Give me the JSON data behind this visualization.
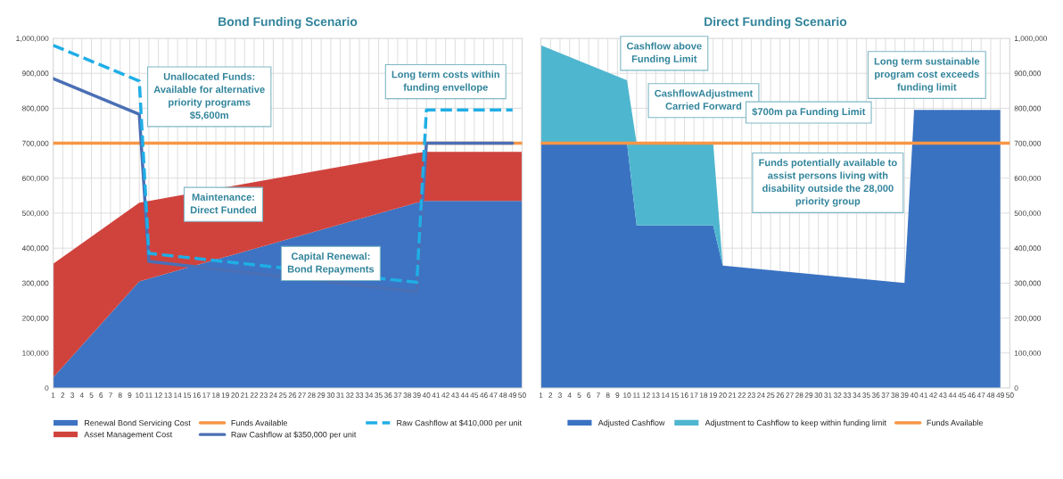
{
  "chart_data": [
    {
      "type": "area",
      "title": "Bond Funding Scenario",
      "stacked": true,
      "grid": true,
      "legend": "bottom",
      "xlim": [
        1,
        50
      ],
      "xticks": [
        1,
        2,
        3,
        4,
        5,
        6,
        7,
        8,
        9,
        10,
        11,
        12,
        13,
        14,
        15,
        16,
        17,
        18,
        19,
        20,
        21,
        22,
        23,
        24,
        25,
        26,
        27,
        28,
        29,
        30,
        31,
        32,
        33,
        34,
        35,
        36,
        37,
        38,
        39,
        40,
        41,
        42,
        43,
        44,
        45,
        46,
        47,
        48,
        49,
        50
      ],
      "ylim": [
        0,
        1000000
      ],
      "yticks": [
        0,
        {
          "value": 100000,
          "label": "100,000"
        },
        {
          "value": 200000,
          "label": "200,000"
        },
        {
          "value": 300000,
          "label": "300,000"
        },
        {
          "value": 400000,
          "label": "400,000"
        },
        {
          "value": 500000,
          "label": "500,000"
        },
        {
          "value": 600000,
          "label": "600,000"
        },
        {
          "value": 700000,
          "label": "700,000"
        },
        {
          "value": 800000,
          "label": "800,000"
        },
        {
          "value": 900000,
          "label": "900,000"
        },
        {
          "value": 1000000,
          "label": "1,000,000"
        }
      ],
      "series": [
        {
          "name": "Renewal Bond Servicing Cost",
          "color": "#3d73c2",
          "x": [
            1,
            10,
            39,
            40,
            50
          ],
          "values": [
            30000,
            305000,
            530000,
            535000,
            535000
          ]
        },
        {
          "name": "Asset Management Cost",
          "color": "#d0433d",
          "x": [
            1,
            10,
            39,
            40,
            50
          ],
          "values": [
            325000,
            225000,
            142000,
            140000,
            140000
          ]
        },
        {
          "name": "Funds Available",
          "type": "line",
          "color": "#f79646",
          "line_style": "solid",
          "x": [
            1,
            50
          ],
          "values": [
            700000,
            700000
          ]
        },
        {
          "name": "Raw Cashflow at $350,000 per unit",
          "type": "line",
          "color": "#4a6fb5",
          "line_style": "solid",
          "x": [
            1,
            10,
            11,
            39,
            40,
            49
          ],
          "values": [
            885000,
            783000,
            362000,
            275000,
            700000,
            700000
          ]
        },
        {
          "name": "Raw Cashflow at $410,000 per unit",
          "type": "line",
          "color": "#1faee6",
          "line_style": "dashed",
          "x": [
            1,
            10,
            11,
            39,
            40,
            49
          ],
          "values": [
            980000,
            878000,
            385000,
            302000,
            795000,
            795000
          ]
        }
      ],
      "annotations": [
        "Unallocated Funds:\nAvailable for alternative\npriority programs\n$5,600m",
        "Long term costs within\nfunding envellope",
        "Maintenance:\nDirect Funded",
        "Capital Renewal:\nBond Repayments"
      ]
    },
    {
      "type": "area",
      "title": "Direct Funding Scenario",
      "stacked": true,
      "grid": true,
      "legend": "bottom",
      "xlim": [
        1,
        50
      ],
      "xticks": [
        1,
        2,
        3,
        4,
        5,
        6,
        7,
        8,
        9,
        10,
        11,
        12,
        13,
        14,
        15,
        16,
        17,
        18,
        19,
        20,
        21,
        22,
        23,
        24,
        25,
        26,
        27,
        28,
        29,
        30,
        31,
        32,
        33,
        34,
        35,
        36,
        37,
        38,
        39,
        40,
        41,
        42,
        43,
        44,
        45,
        46,
        47,
        48,
        49,
        50
      ],
      "y2lim": [
        0,
        1000000
      ],
      "y2ticks": [
        0,
        {
          "value": 100000,
          "label": "100,000"
        },
        {
          "value": 200000,
          "label": "200,000"
        },
        {
          "value": 300000,
          "label": "300,000"
        },
        {
          "value": 400000,
          "label": "400,000"
        },
        {
          "value": 500000,
          "label": "500,000"
        },
        {
          "value": 600000,
          "label": "600,000"
        },
        {
          "value": 700000,
          "label": "700,000"
        },
        {
          "value": 800000,
          "label": "800,000"
        },
        {
          "value": 900000,
          "label": "900,000"
        },
        {
          "value": 1000000,
          "label": "1,000,000"
        }
      ],
      "series": [
        {
          "name": "Adjusted Cashflow",
          "axis": "y2",
          "color": "#3a72c2",
          "x": [
            1,
            10,
            11,
            19,
            20,
            39,
            40,
            49
          ],
          "values": [
            700000,
            700000,
            465000,
            465000,
            350000,
            300000,
            795000,
            795000
          ]
        },
        {
          "name": "Adjustment to Cashflow to keep within funding limit",
          "axis": "y2",
          "color": "#4fb6cf",
          "x": [
            1,
            10,
            11,
            19,
            20,
            39,
            40,
            49
          ],
          "values": [
            280000,
            180000,
            235000,
            235000,
            0,
            0,
            0,
            0
          ]
        },
        {
          "name": "Funds Available",
          "type": "line",
          "axis": "y2",
          "color": "#f79646",
          "line_style": "solid",
          "x": [
            1,
            50
          ],
          "values": [
            700000,
            700000
          ]
        }
      ],
      "annotations": [
        "Cashflow above\nFunding Limit",
        "CashflowAdjustment\nCarried Forward",
        "$700m pa Funding Limit",
        "Long term sustainable\nprogram cost exceeds\nfunding limit",
        "Funds potentially available to\nassist persons living with\ndisability outside the 28,000\npriority group"
      ]
    }
  ]
}
